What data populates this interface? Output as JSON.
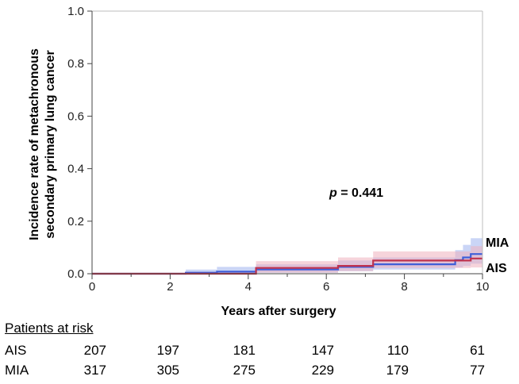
{
  "chart_data": {
    "type": "line",
    "subtype": "cumulative-incidence-step",
    "xlabel": "Years after surgery",
    "ylabel": [
      "Incidence rate of metachronous",
      "secondary primary lung cancer"
    ],
    "xlim": [
      0,
      10
    ],
    "ylim": [
      0,
      1.0
    ],
    "xticks": [
      "0",
      "2",
      "4",
      "6",
      "8",
      "10"
    ],
    "yticks": [
      "0.0",
      "0.2",
      "0.4",
      "0.6",
      "0.8",
      "1.0"
    ],
    "annotation": {
      "prefix": "p",
      "text": " = 0.441"
    },
    "series": [
      {
        "name": "MIA",
        "color": "#3f5fd8",
        "band_color": "#9fb3ee",
        "x": [
          0,
          2.4,
          3.2,
          4.2,
          6.3,
          7.2,
          9.3,
          9.5,
          9.7,
          10
        ],
        "y": [
          0,
          0.004,
          0.008,
          0.016,
          0.026,
          0.036,
          0.052,
          0.062,
          0.075,
          0.075
        ],
        "lower": [
          0,
          0.0,
          0.0,
          0.004,
          0.01,
          0.016,
          0.024,
          0.03,
          0.038,
          0.038
        ],
        "upper": [
          0,
          0.016,
          0.026,
          0.036,
          0.05,
          0.062,
          0.09,
          0.11,
          0.135,
          0.135
        ]
      },
      {
        "name": "AIS",
        "color": "#c0324e",
        "band_color": "#eeb0be",
        "x": [
          0,
          4.2,
          6.3,
          7.2,
          9.7,
          10
        ],
        "y": [
          0,
          0.022,
          0.03,
          0.05,
          0.058,
          0.058
        ],
        "lower": [
          0,
          0.004,
          0.01,
          0.022,
          0.024,
          0.024
        ],
        "upper": [
          0,
          0.048,
          0.062,
          0.085,
          0.105,
          0.105
        ]
      }
    ],
    "legend": "inline-right"
  },
  "risk_table": {
    "title": "Patients at risk",
    "rows": [
      {
        "label": "AIS",
        "values": [
          "207",
          "197",
          "181",
          "147",
          "110",
          "61"
        ]
      },
      {
        "label": "MIA",
        "values": [
          "317",
          "305",
          "275",
          "229",
          "179",
          "77"
        ]
      }
    ]
  }
}
